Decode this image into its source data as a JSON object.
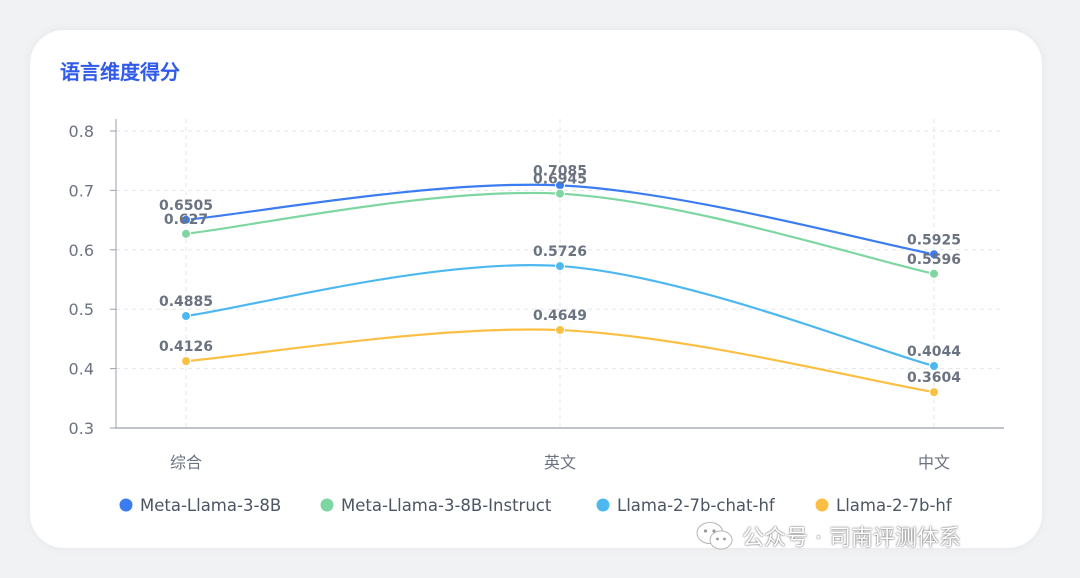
{
  "chart_data": {
    "type": "line",
    "title": "语言维度得分",
    "categories": [
      "综合",
      "英文",
      "中文"
    ],
    "ylim": [
      0.3,
      0.8
    ],
    "yticks": [
      0.3,
      0.4,
      0.5,
      0.6,
      0.7,
      0.8
    ],
    "ytick_labels": [
      "0.3",
      "0.4",
      "0.5",
      "0.6",
      "0.7",
      "0.8"
    ],
    "grid": true,
    "legend_position": "bottom",
    "series": [
      {
        "name": "Meta-Llama-3-8B",
        "color": "#3b7cf0",
        "values": [
          0.6505,
          0.7085,
          0.5925
        ],
        "labels": [
          "0.6505",
          "0.7085",
          "0.5925"
        ]
      },
      {
        "name": "Meta-Llama-3-8B-Instruct",
        "color": "#7ed6a0",
        "values": [
          0.627,
          0.6945,
          0.5596
        ],
        "labels": [
          "0.627",
          "0.6945",
          "0.5596"
        ]
      },
      {
        "name": "Llama-2-7b-chat-hf",
        "color": "#4db8f0",
        "values": [
          0.4885,
          0.5726,
          0.4044
        ],
        "labels": [
          "0.4885",
          "0.5726",
          "0.4044"
        ]
      },
      {
        "name": "Llama-2-7b-hf",
        "color": "#fbc043",
        "values": [
          0.4126,
          0.4649,
          0.3604
        ],
        "labels": [
          "0.4126",
          "0.4649",
          "0.3604"
        ]
      }
    ]
  },
  "watermark": {
    "text": "公众号 · 司南评测体系",
    "icon": "wechat-icon"
  }
}
